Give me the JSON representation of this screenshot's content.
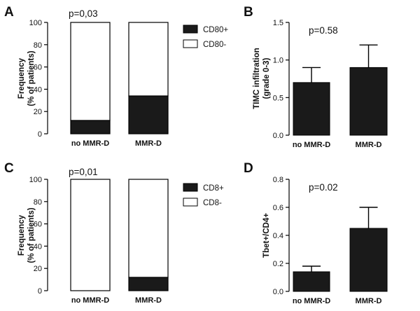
{
  "figure": {
    "colors": {
      "filled": "#1a1a1a",
      "empty": "#ffffff",
      "stroke": "#000000"
    }
  },
  "chart_data": [
    {
      "panel": "A",
      "type": "bar",
      "stacked": true,
      "categories": [
        "no MMR-D",
        "MMR-D"
      ],
      "series": [
        {
          "name": "CD80+",
          "values": [
            12,
            34
          ],
          "color": "#1a1a1a"
        },
        {
          "name": "CD80-",
          "values": [
            88,
            66
          ],
          "color": "#ffffff"
        }
      ],
      "ylabel_line1": "Frequency",
      "ylabel_line2": "(% of patients)",
      "yticks": [
        "0",
        "20",
        "40",
        "60",
        "80",
        "100"
      ],
      "ylim": [
        0,
        100
      ],
      "annotation": "p=0,03",
      "legend": [
        "CD80+",
        "CD80-"
      ]
    },
    {
      "panel": "B",
      "type": "bar",
      "stacked": false,
      "categories": [
        "no MMR-D",
        "MMR-D"
      ],
      "values": [
        0.7,
        0.9
      ],
      "errors": [
        0.2,
        0.3
      ],
      "ylabel_line1": "TIMC infiltration",
      "ylabel_line2": "(grade 0-3)",
      "yticks": [
        "0.0",
        "0.5",
        "1.0",
        "1.5"
      ],
      "ylim": [
        0,
        1.5
      ],
      "annotation": "p=0.58"
    },
    {
      "panel": "C",
      "type": "bar",
      "stacked": true,
      "categories": [
        "no MMR-D",
        "MMR-D"
      ],
      "series": [
        {
          "name": "CD8+",
          "values": [
            0,
            12
          ],
          "color": "#1a1a1a"
        },
        {
          "name": "CD8-",
          "values": [
            100,
            88
          ],
          "color": "#ffffff"
        }
      ],
      "ylabel_line1": "Frequency",
      "ylabel_line2": "(% of patients)",
      "yticks": [
        "0",
        "20",
        "40",
        "60",
        "80",
        "100"
      ],
      "ylim": [
        0,
        100
      ],
      "annotation": "p=0,01",
      "legend": [
        "CD8+",
        "CD8-"
      ]
    },
    {
      "panel": "D",
      "type": "bar",
      "stacked": false,
      "categories": [
        "no MMR-D",
        "MMR-D"
      ],
      "values": [
        0.14,
        0.45
      ],
      "errors": [
        0.04,
        0.15
      ],
      "ylabel_line1": "Tbet+/CD4+",
      "ylabel_line2": "",
      "yticks": [
        "0.0",
        "0.2",
        "0.4",
        "0.6",
        "0.8"
      ],
      "ylim": [
        0,
        0.8
      ],
      "annotation": "p=0.02"
    }
  ]
}
